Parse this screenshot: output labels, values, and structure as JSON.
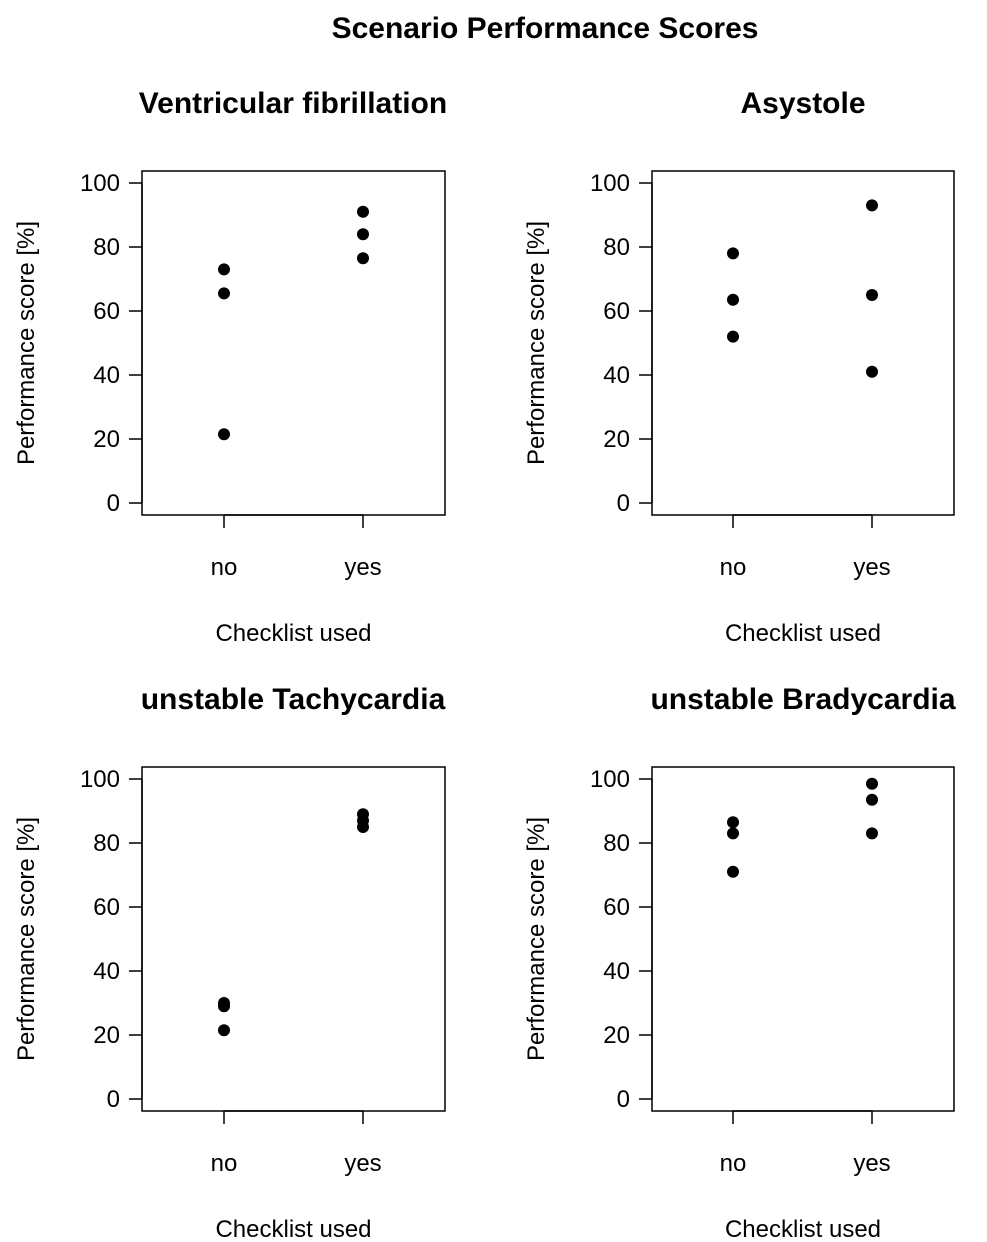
{
  "figure": {
    "title": "Scenario Performance Scores"
  },
  "chart_data": [
    {
      "type": "scatter",
      "title": "Ventricular fibrillation",
      "xlabel": "Checklist used",
      "ylabel": "Performance score [%]",
      "categories": [
        "no",
        "yes"
      ],
      "y_ticks": [
        0,
        20,
        40,
        60,
        80,
        100
      ],
      "ylim": [
        0,
        100
      ],
      "grid": false,
      "points": [
        {
          "x": "no",
          "y": 73
        },
        {
          "x": "no",
          "y": 65.5
        },
        {
          "x": "no",
          "y": 21.5
        },
        {
          "x": "yes",
          "y": 91
        },
        {
          "x": "yes",
          "y": 84
        },
        {
          "x": "yes",
          "y": 76.5
        }
      ]
    },
    {
      "type": "scatter",
      "title": "Asystole",
      "xlabel": "Checklist used",
      "ylabel": "Performance score [%]",
      "categories": [
        "no",
        "yes"
      ],
      "y_ticks": [
        0,
        20,
        40,
        60,
        80,
        100
      ],
      "ylim": [
        0,
        100
      ],
      "grid": false,
      "points": [
        {
          "x": "no",
          "y": 78
        },
        {
          "x": "no",
          "y": 63.5
        },
        {
          "x": "no",
          "y": 52
        },
        {
          "x": "yes",
          "y": 93
        },
        {
          "x": "yes",
          "y": 65
        },
        {
          "x": "yes",
          "y": 41
        }
      ]
    },
    {
      "type": "scatter",
      "title": "unstable Tachycardia",
      "xlabel": "Checklist used",
      "ylabel": "Performance score [%]",
      "categories": [
        "no",
        "yes"
      ],
      "y_ticks": [
        0,
        20,
        40,
        60,
        80,
        100
      ],
      "ylim": [
        0,
        100
      ],
      "grid": false,
      "points": [
        {
          "x": "no",
          "y": 30
        },
        {
          "x": "no",
          "y": 29
        },
        {
          "x": "no",
          "y": 21.5
        },
        {
          "x": "yes",
          "y": 89
        },
        {
          "x": "yes",
          "y": 87
        },
        {
          "x": "yes",
          "y": 85
        }
      ]
    },
    {
      "type": "scatter",
      "title": "unstable Bradycardia",
      "xlabel": "Checklist used",
      "ylabel": "Performance score [%]",
      "categories": [
        "no",
        "yes"
      ],
      "y_ticks": [
        0,
        20,
        40,
        60,
        80,
        100
      ],
      "ylim": [
        0,
        100
      ],
      "grid": false,
      "points": [
        {
          "x": "no",
          "y": 86.5
        },
        {
          "x": "no",
          "y": 83
        },
        {
          "x": "no",
          "y": 71
        },
        {
          "x": "yes",
          "y": 98.5
        },
        {
          "x": "yes",
          "y": 93.5
        },
        {
          "x": "yes",
          "y": 83
        }
      ]
    }
  ]
}
